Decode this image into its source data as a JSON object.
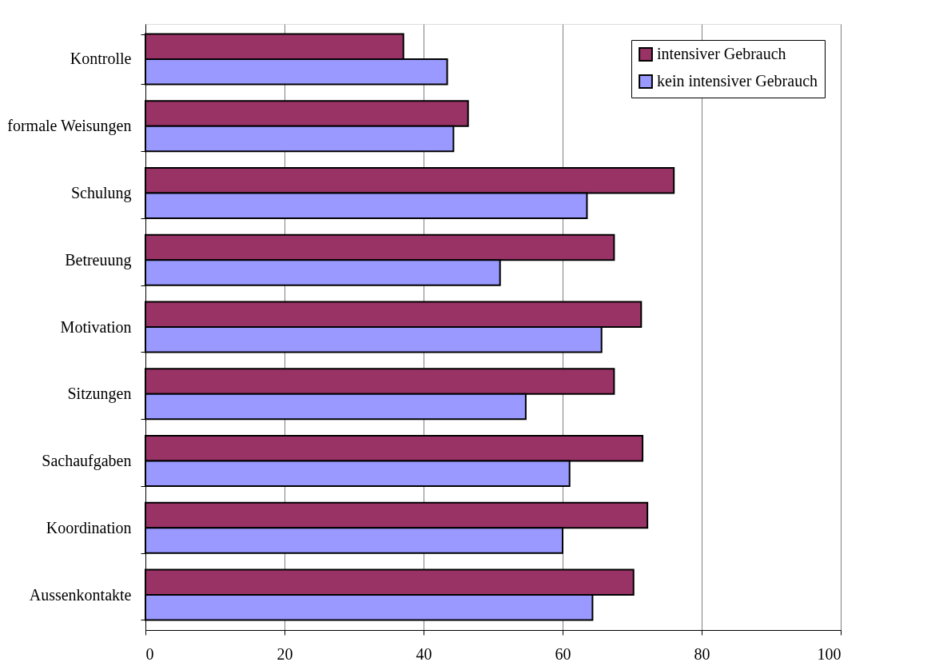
{
  "chart_data": {
    "type": "bar",
    "orientation": "horizontal",
    "categories": [
      "Kontrolle",
      "formale Weisungen",
      "Schulung",
      "Betreuung",
      "Motivation",
      "Sitzungen",
      "Sachaufgaben",
      "Koordination",
      "Aussenkontakte"
    ],
    "series": [
      {
        "name": "intensiver Gebrauch",
        "color": "#993366",
        "values": [
          37.1,
          46.4,
          76,
          67.4,
          71.3,
          67.4,
          71.5,
          72.2,
          70.2
        ]
      },
      {
        "name": "kein intensiver Gebrauch",
        "color": "#9999ff",
        "values": [
          43.4,
          44.3,
          63.5,
          51.0,
          65.6,
          54.7,
          61.0,
          60.0,
          64.3
        ]
      }
    ],
    "xlim": [
      0,
      100
    ],
    "xticks": [
      0,
      20,
      40,
      60,
      80,
      100
    ],
    "grid": "x",
    "legend": "top right"
  }
}
